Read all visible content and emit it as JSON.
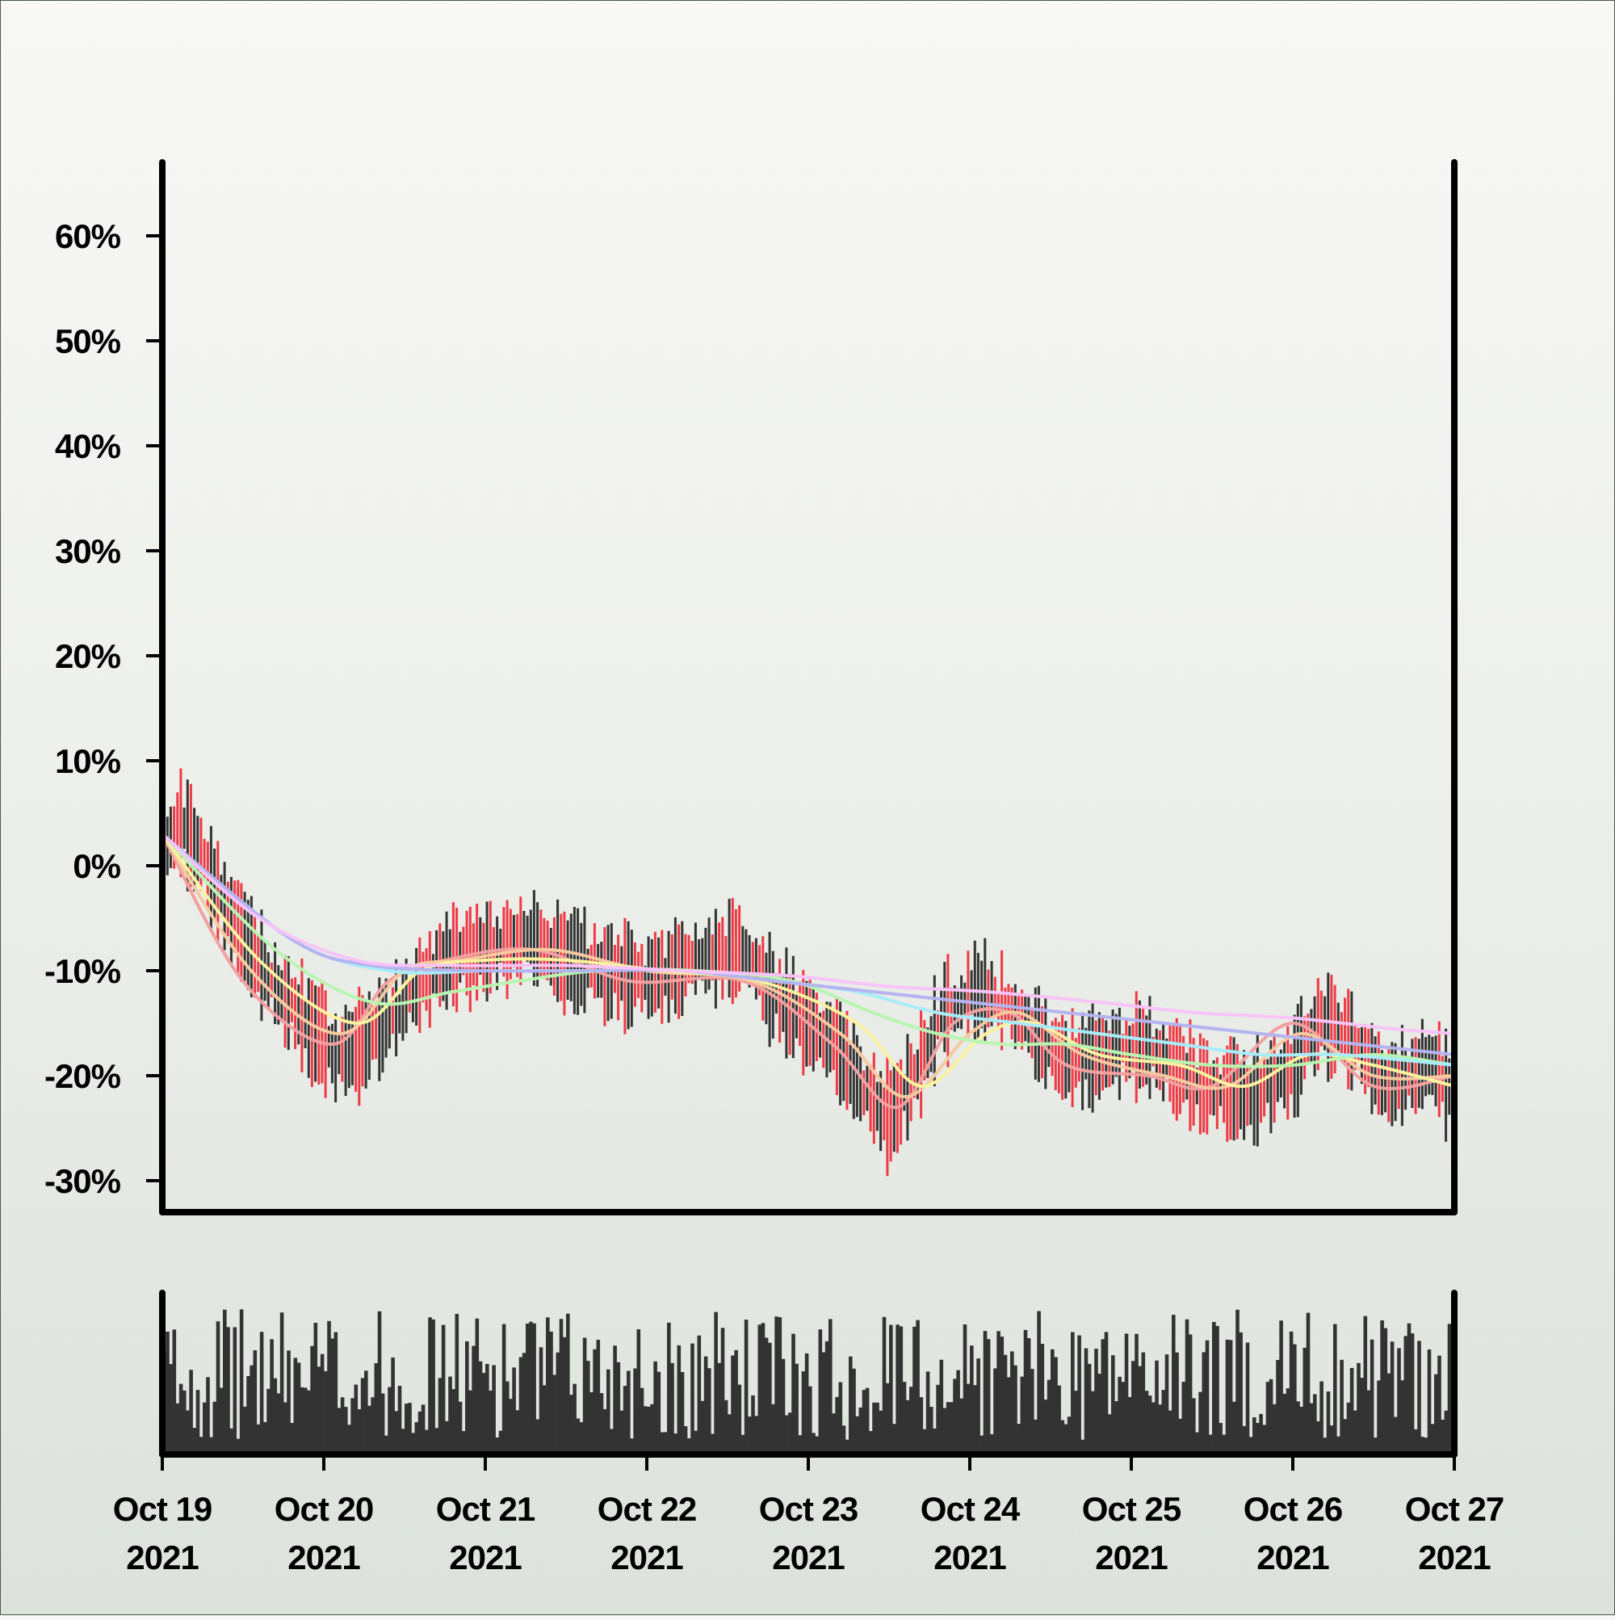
{
  "chart_data": {
    "type": "candlestick",
    "title": "",
    "xlabel": "",
    "ylabel": "",
    "y_unit": "%",
    "ylim": [
      -33,
      67
    ],
    "y_ticks": [
      {
        "value": 60,
        "label": "60%"
      },
      {
        "value": 50,
        "label": "50%"
      },
      {
        "value": 40,
        "label": "40%"
      },
      {
        "value": 30,
        "label": "30%"
      },
      {
        "value": 20,
        "label": "20%"
      },
      {
        "value": 10,
        "label": "10%"
      },
      {
        "value": 0,
        "label": "0%"
      },
      {
        "value": -10,
        "label": "-10%"
      },
      {
        "value": -20,
        "label": "-20%"
      },
      {
        "value": -30,
        "label": "-30%"
      }
    ],
    "x_range": [
      "2021-10-19",
      "2021-10-27"
    ],
    "x_ticks": [
      {
        "date": "2021-10-19",
        "label": [
          "Oct 19",
          "2021"
        ]
      },
      {
        "date": "2021-10-20",
        "label": [
          "Oct 20",
          "2021"
        ]
      },
      {
        "date": "2021-10-21",
        "label": [
          "Oct 21",
          "2021"
        ]
      },
      {
        "date": "2021-10-22",
        "label": [
          "Oct 22",
          "2021"
        ]
      },
      {
        "date": "2021-10-23",
        "label": [
          "Oct 23",
          "2021"
        ]
      },
      {
        "date": "2021-10-24",
        "label": [
          "Oct 24",
          "2021"
        ]
      },
      {
        "date": "2021-10-25",
        "label": [
          "Oct 25",
          "2021"
        ]
      },
      {
        "date": "2021-10-26",
        "label": [
          "Oct 26",
          "2021"
        ]
      },
      {
        "date": "2021-10-27",
        "label": [
          "Oct 27",
          "2021"
        ]
      }
    ],
    "price_trend": [
      {
        "date": "2021-10-19T00:00",
        "value": 1
      },
      {
        "date": "2021-10-19T03:00",
        "value": 4
      },
      {
        "date": "2021-10-19T08:00",
        "value": -2
      },
      {
        "date": "2021-10-19T14:00",
        "value": -9
      },
      {
        "date": "2021-10-19T20:00",
        "value": -14
      },
      {
        "date": "2021-10-20T02:00",
        "value": -18
      },
      {
        "date": "2021-10-20T06:00",
        "value": -17
      },
      {
        "date": "2021-10-20T12:00",
        "value": -13
      },
      {
        "date": "2021-10-20T18:00",
        "value": -9
      },
      {
        "date": "2021-10-21T00:00",
        "value": -8
      },
      {
        "date": "2021-10-21T06:00",
        "value": -7
      },
      {
        "date": "2021-10-21T12:00",
        "value": -9
      },
      {
        "date": "2021-10-21T18:00",
        "value": -10
      },
      {
        "date": "2021-10-22T00:00",
        "value": -11
      },
      {
        "date": "2021-10-22T08:00",
        "value": -9
      },
      {
        "date": "2021-10-22T14:00",
        "value": -8
      },
      {
        "date": "2021-10-22T20:00",
        "value": -13
      },
      {
        "date": "2021-10-23T04:00",
        "value": -17
      },
      {
        "date": "2021-10-23T08:00",
        "value": -21
      },
      {
        "date": "2021-10-23T12:00",
        "value": -24
      },
      {
        "date": "2021-10-23T16:00",
        "value": -20
      },
      {
        "date": "2021-10-23T20:00",
        "value": -14
      },
      {
        "date": "2021-10-24T02:00",
        "value": -12
      },
      {
        "date": "2021-10-24T08:00",
        "value": -15
      },
      {
        "date": "2021-10-24T14:00",
        "value": -19
      },
      {
        "date": "2021-10-24T20:00",
        "value": -18
      },
      {
        "date": "2021-10-25T02:00",
        "value": -17
      },
      {
        "date": "2021-10-25T10:00",
        "value": -21
      },
      {
        "date": "2021-10-25T18:00",
        "value": -22
      },
      {
        "date": "2021-10-26T00:00",
        "value": -19
      },
      {
        "date": "2021-10-26T04:00",
        "value": -15
      },
      {
        "date": "2021-10-26T08:00",
        "value": -16
      },
      {
        "date": "2021-10-26T14:00",
        "value": -21
      },
      {
        "date": "2021-10-26T20:00",
        "value": -19
      },
      {
        "date": "2021-10-27T00:00",
        "value": -21
      }
    ],
    "moving_averages": [
      {
        "color": "#f2a0a0",
        "points": [
          [
            0,
            3
          ],
          [
            0.5,
            -11
          ],
          [
            1.05,
            -17
          ],
          [
            1.4,
            -11
          ],
          [
            1.75,
            -9
          ],
          [
            2.3,
            -8
          ],
          [
            2.9,
            -11
          ],
          [
            3.6,
            -11
          ],
          [
            4.15,
            -17
          ],
          [
            4.55,
            -23
          ],
          [
            4.9,
            -15
          ],
          [
            5.25,
            -14
          ],
          [
            5.6,
            -19
          ],
          [
            6.1,
            -20
          ],
          [
            6.5,
            -21
          ],
          [
            7.0,
            -15
          ],
          [
            7.5,
            -21
          ],
          [
            8.0,
            -20
          ]
        ]
      },
      {
        "color": "#f7c9a0",
        "points": [
          [
            0,
            3
          ],
          [
            0.55,
            -10
          ],
          [
            1.1,
            -16
          ],
          [
            1.5,
            -10
          ],
          [
            1.85,
            -9
          ],
          [
            2.4,
            -8
          ],
          [
            3.0,
            -10
          ],
          [
            3.65,
            -11
          ],
          [
            4.2,
            -16
          ],
          [
            4.6,
            -22
          ],
          [
            5.0,
            -16
          ],
          [
            5.3,
            -14
          ],
          [
            5.7,
            -18
          ],
          [
            6.2,
            -20
          ],
          [
            6.6,
            -21
          ],
          [
            7.05,
            -16
          ],
          [
            7.5,
            -20
          ],
          [
            8.0,
            -20
          ]
        ]
      },
      {
        "color": "#fbf2a0",
        "points": [
          [
            0,
            3
          ],
          [
            0.6,
            -9
          ],
          [
            1.2,
            -15
          ],
          [
            1.6,
            -10
          ],
          [
            2.0,
            -9
          ],
          [
            2.5,
            -9
          ],
          [
            3.1,
            -10
          ],
          [
            3.7,
            -11
          ],
          [
            4.3,
            -15
          ],
          [
            4.7,
            -21
          ],
          [
            5.1,
            -16
          ],
          [
            5.4,
            -15
          ],
          [
            5.8,
            -18
          ],
          [
            6.3,
            -19
          ],
          [
            6.7,
            -21
          ],
          [
            7.1,
            -18
          ],
          [
            7.5,
            -19
          ],
          [
            8.0,
            -21
          ]
        ]
      },
      {
        "color": "#b8f5b0",
        "points": [
          [
            0,
            3
          ],
          [
            0.7,
            -8
          ],
          [
            1.3,
            -13
          ],
          [
            1.8,
            -12
          ],
          [
            2.2,
            -11
          ],
          [
            2.7,
            -10
          ],
          [
            3.3,
            -10
          ],
          [
            3.9,
            -11
          ],
          [
            4.4,
            -14
          ],
          [
            4.8,
            -16
          ],
          [
            5.2,
            -17
          ],
          [
            5.6,
            -17
          ],
          [
            6.0,
            -18
          ],
          [
            6.5,
            -19
          ],
          [
            7.0,
            -19
          ],
          [
            7.5,
            -18
          ],
          [
            8.0,
            -19
          ]
        ]
      },
      {
        "color": "#a8ecfa",
        "points": [
          [
            0,
            3
          ],
          [
            0.8,
            -7
          ],
          [
            1.4,
            -10
          ],
          [
            2.0,
            -10
          ],
          [
            2.6,
            -10
          ],
          [
            3.2,
            -10
          ],
          [
            3.8,
            -11
          ],
          [
            4.3,
            -12
          ],
          [
            4.8,
            -14
          ],
          [
            5.3,
            -15
          ],
          [
            5.8,
            -16
          ],
          [
            6.3,
            -17
          ],
          [
            6.8,
            -18
          ],
          [
            7.3,
            -18
          ],
          [
            8.0,
            -19
          ]
        ]
      },
      {
        "color": "#b4b4f0",
        "points": [
          [
            0,
            3
          ],
          [
            0.8,
            -7
          ],
          [
            1.3,
            -9.5
          ],
          [
            2.0,
            -10
          ],
          [
            2.6,
            -10
          ],
          [
            3.2,
            -10
          ],
          [
            3.8,
            -11
          ],
          [
            4.4,
            -12
          ],
          [
            5.0,
            -13
          ],
          [
            5.6,
            -14
          ],
          [
            6.2,
            -15
          ],
          [
            6.8,
            -16
          ],
          [
            7.4,
            -17
          ],
          [
            8.0,
            -18
          ]
        ]
      },
      {
        "color": "#f8c4f8",
        "points": [
          [
            0,
            3
          ],
          [
            0.6,
            -5
          ],
          [
            1.2,
            -9
          ],
          [
            1.8,
            -9.5
          ],
          [
            2.5,
            -9.5
          ],
          [
            3.2,
            -10
          ],
          [
            3.9,
            -10.5
          ],
          [
            4.5,
            -11.5
          ],
          [
            5.1,
            -12
          ],
          [
            5.8,
            -13
          ],
          [
            6.4,
            -14
          ],
          [
            7.0,
            -14.5
          ],
          [
            7.6,
            -15.5
          ],
          [
            8.0,
            -16
          ]
        ]
      }
    ],
    "candle_colors": {
      "up": "#333333",
      "down": "#ee3a45"
    },
    "volume_color": "#333333",
    "axis_color": "#000000"
  }
}
